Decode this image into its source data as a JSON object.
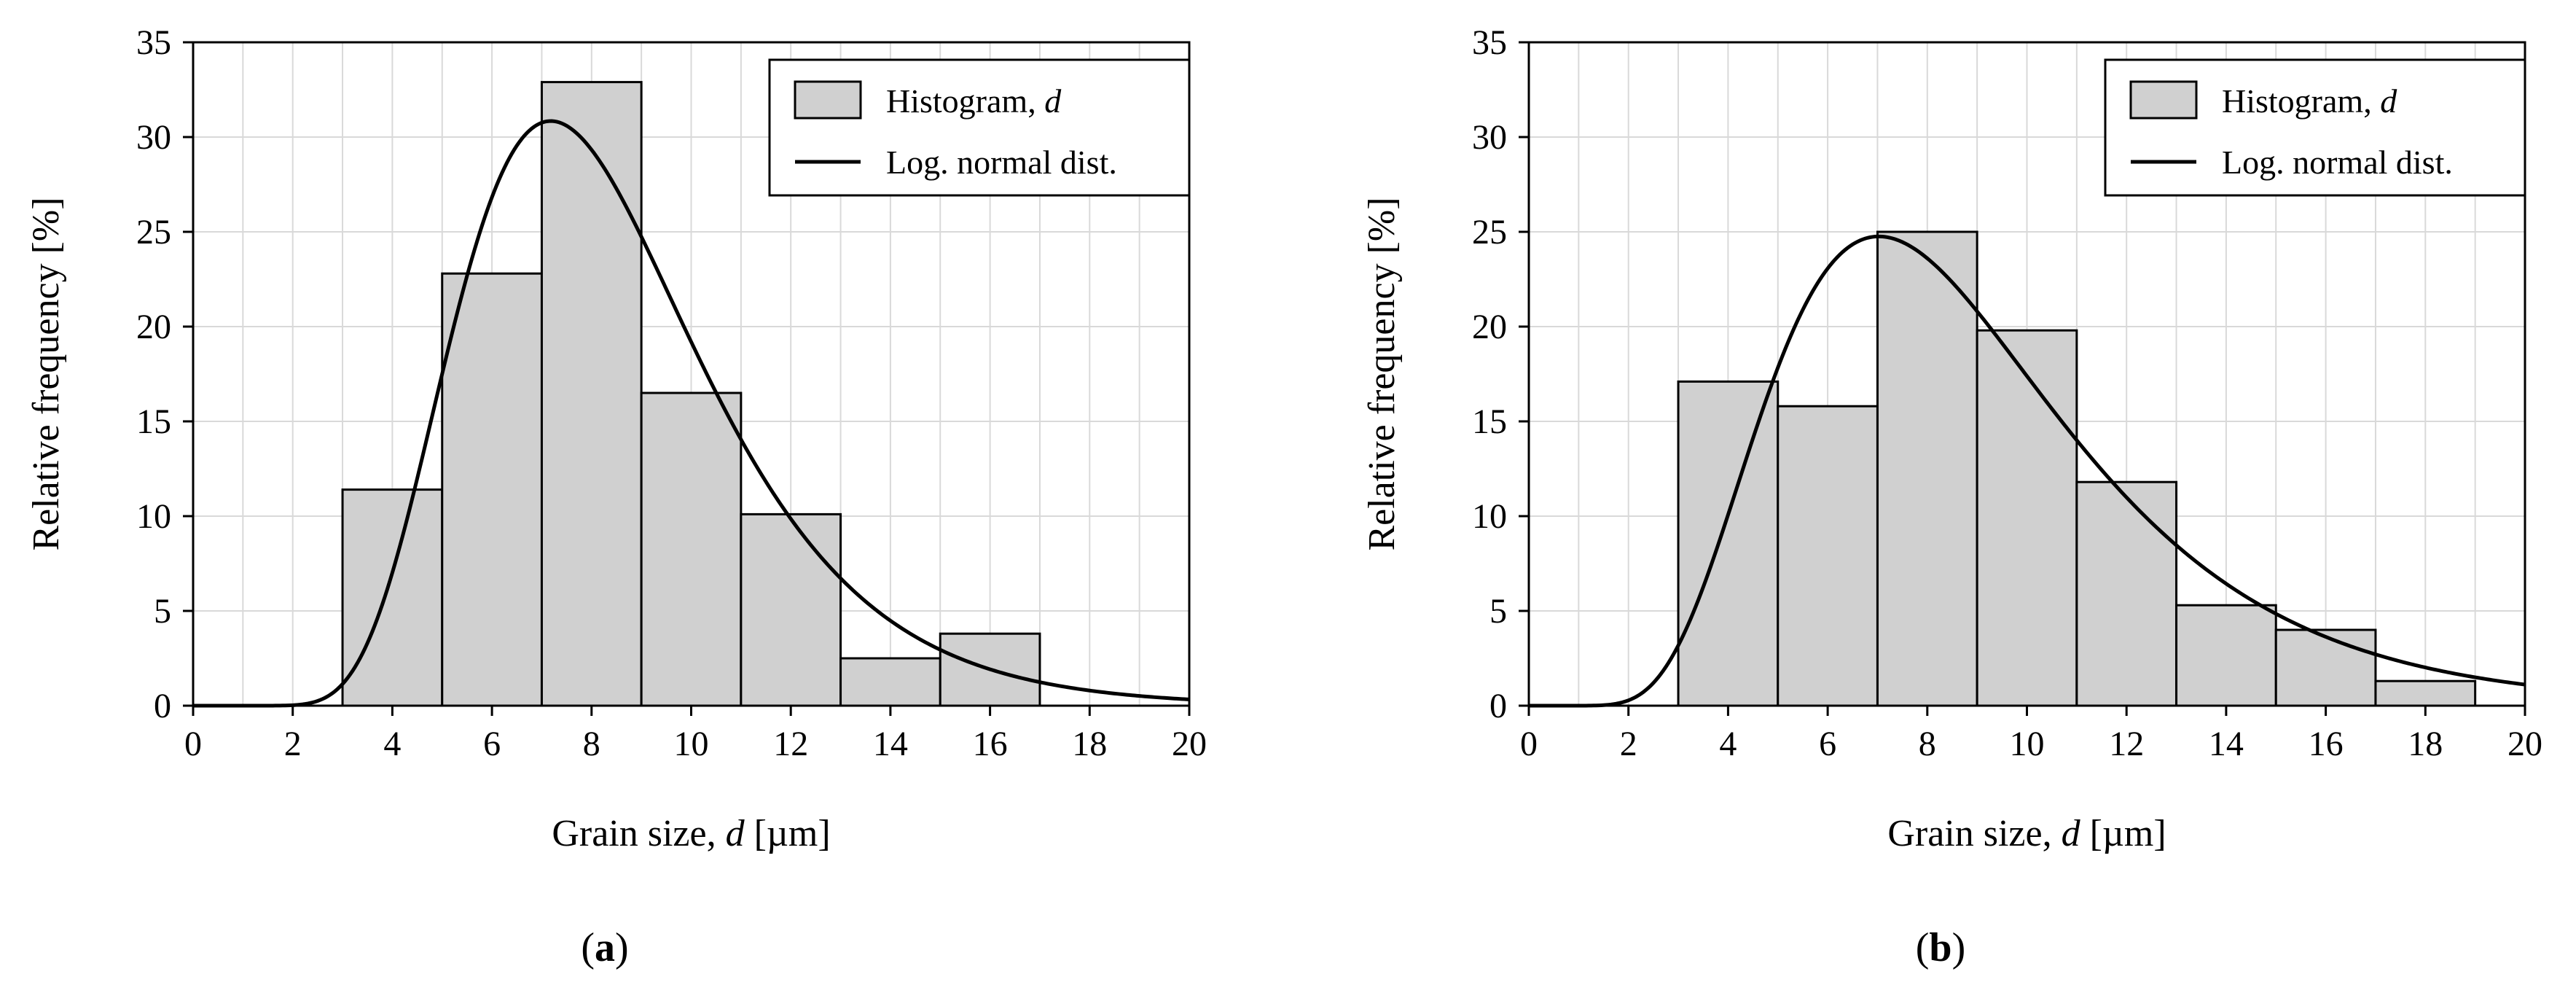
{
  "chart_data": [
    {
      "type": "bar",
      "panel_label": "(a)",
      "panel_letter": "a",
      "xlabel": "Grain size, d [µm]",
      "ylabel": "Relative frequency [%]",
      "xlim": [
        0,
        20
      ],
      "ylim": [
        0,
        35
      ],
      "xticks": [
        0,
        2,
        4,
        6,
        8,
        10,
        12,
        14,
        16,
        18,
        20
      ],
      "yticks": [
        0,
        5,
        10,
        15,
        20,
        25,
        30,
        35
      ],
      "grid": true,
      "legend_position": "top-right",
      "legend": {
        "histogram": "Histogram, d",
        "curve": "Log. normal dist."
      },
      "bins": [
        {
          "x0": 3,
          "x1": 5,
          "value": 11.4
        },
        {
          "x0": 5,
          "x1": 7,
          "value": 22.8
        },
        {
          "x0": 7,
          "x1": 9,
          "value": 32.9
        },
        {
          "x0": 9,
          "x1": 11,
          "value": 16.5
        },
        {
          "x0": 11,
          "x1": 13,
          "value": 10.1
        },
        {
          "x0": 13,
          "x1": 15,
          "value": 2.5
        },
        {
          "x0": 15,
          "x1": 17,
          "value": 3.8
        }
      ],
      "lognormal": {
        "mu": 2.087,
        "sigma": 0.34,
        "scale": 200
      }
    },
    {
      "type": "bar",
      "panel_label": "(b)",
      "panel_letter": "b",
      "xlabel": "Grain size, d [µm]",
      "ylabel": "Relative frequency [%]",
      "xlim": [
        0,
        20
      ],
      "ylim": [
        0,
        35
      ],
      "xticks": [
        0,
        2,
        4,
        6,
        8,
        10,
        12,
        14,
        16,
        18,
        20
      ],
      "yticks": [
        0,
        5,
        10,
        15,
        20,
        25,
        30,
        35
      ],
      "grid": true,
      "legend_position": "top-right",
      "legend": {
        "histogram": "Histogram, d",
        "curve": "Log. normal dist."
      },
      "bins": [
        {
          "x0": 3,
          "x1": 5,
          "value": 17.1
        },
        {
          "x0": 5,
          "x1": 7,
          "value": 15.8
        },
        {
          "x0": 7,
          "x1": 9,
          "value": 25.0
        },
        {
          "x0": 9,
          "x1": 11,
          "value": 19.8
        },
        {
          "x0": 11,
          "x1": 13,
          "value": 11.8
        },
        {
          "x0": 13,
          "x1": 15,
          "value": 5.3
        },
        {
          "x0": 15,
          "x1": 17,
          "value": 4.0
        },
        {
          "x0": 17,
          "x1": 19,
          "value": 1.3
        }
      ],
      "lognormal": {
        "mu": 2.126,
        "sigma": 0.42,
        "scale": 200
      }
    }
  ],
  "colors": {
    "bar_fill": "#d0d0d0",
    "bar_stroke": "#000000",
    "grid": "#d9d9d9",
    "axis": "#000000",
    "curve": "#000000"
  }
}
